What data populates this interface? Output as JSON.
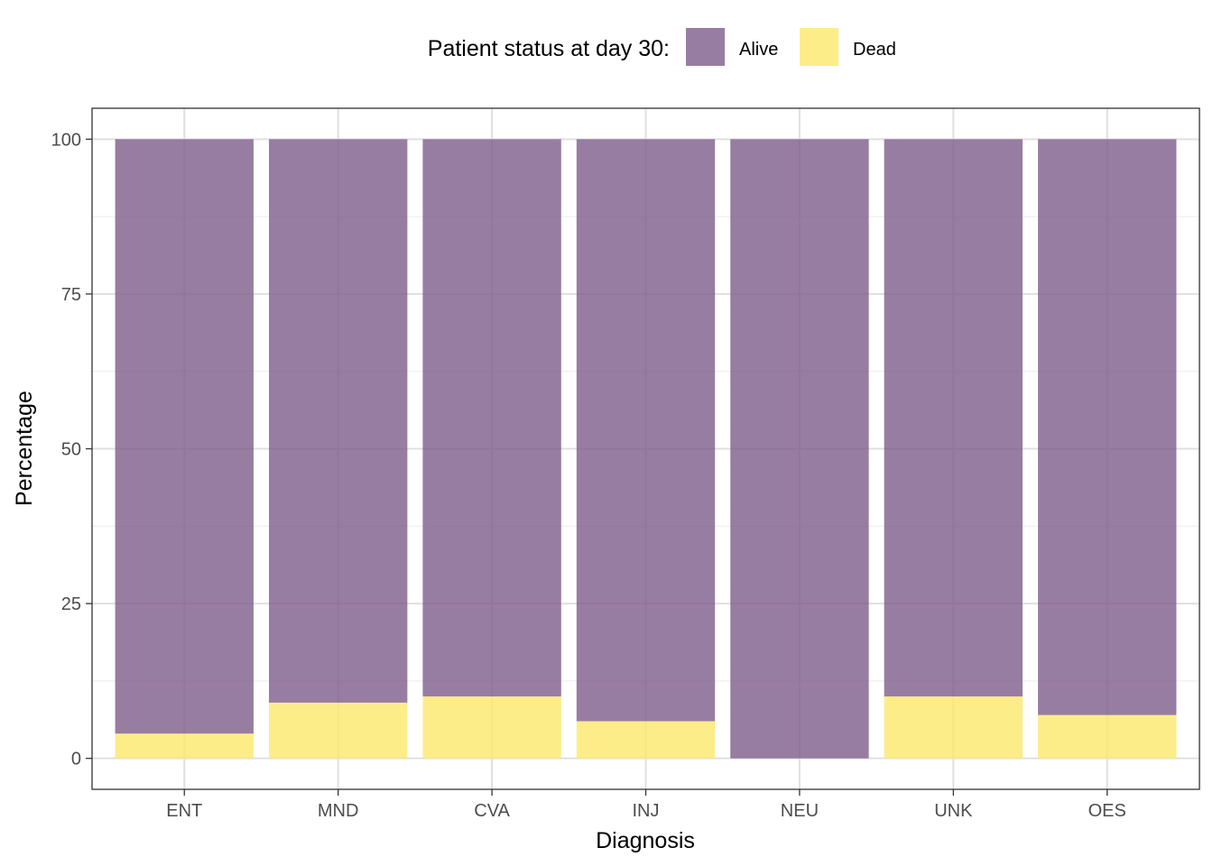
{
  "chart_data": {
    "type": "bar",
    "stacked": true,
    "categories": [
      "ENT",
      "MND",
      "CVA",
      "INJ",
      "NEU",
      "UNK",
      "OES"
    ],
    "series": [
      {
        "name": "Alive",
        "color": "#7e5d8c",
        "values": [
          96,
          91,
          90,
          94,
          100,
          90,
          93
        ]
      },
      {
        "name": "Dead",
        "color": "#fde96a",
        "values": [
          4,
          9,
          10,
          6,
          0,
          10,
          7
        ]
      }
    ],
    "xlabel": "Diagnosis",
    "ylabel": "Percentage",
    "ylim": [
      -5,
      105
    ],
    "yticks": [
      0,
      25,
      50,
      75,
      100
    ],
    "grid": true,
    "legend": {
      "title": "Patient status at day 30:",
      "position": "top",
      "items": [
        "Alive",
        "Dead"
      ]
    }
  }
}
